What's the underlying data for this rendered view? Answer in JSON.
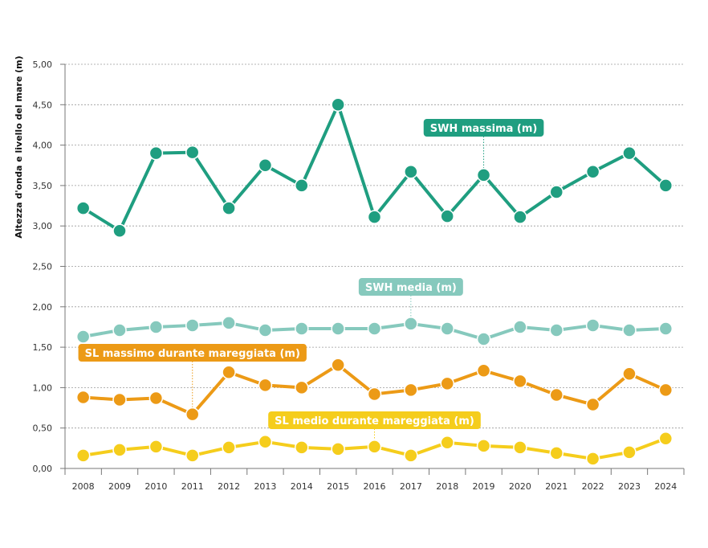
{
  "chart_data": {
    "type": "line",
    "ylabel": "Altezza d'onda e livello del mare (m)",
    "xlabel": "",
    "x": [
      "2008",
      "2009",
      "2010",
      "2011",
      "2012",
      "2013",
      "2014",
      "2015",
      "2016",
      "2017",
      "2018",
      "2019",
      "2020",
      "2021",
      "2022",
      "2023",
      "2024"
    ],
    "ylim": [
      0,
      5
    ],
    "yticks": [
      "0,00",
      "0,50",
      "1,00",
      "1,50",
      "2,00",
      "2,50",
      "3,00",
      "3,50",
      "4,00",
      "4,50",
      "5,00"
    ],
    "grid": "horizontal dashed",
    "series": [
      {
        "name": "SWH massima (m)",
        "color": "#1f9e80",
        "values": [
          3.22,
          2.94,
          3.9,
          3.91,
          3.22,
          3.75,
          3.5,
          4.5,
          3.11,
          3.67,
          3.12,
          3.63,
          3.11,
          3.42,
          3.67,
          3.9,
          3.5
        ]
      },
      {
        "name": "SWH media (m)",
        "color": "#86c9bd",
        "values": [
          1.63,
          1.71,
          1.75,
          1.77,
          1.8,
          1.71,
          1.73,
          1.73,
          1.73,
          1.79,
          1.73,
          1.6,
          1.75,
          1.71,
          1.77,
          1.71,
          1.73
        ]
      },
      {
        "name": "SL massimo durante mareggiata (m)",
        "color": "#ec9a16",
        "values": [
          0.88,
          0.85,
          0.87,
          0.67,
          1.19,
          1.03,
          1.0,
          1.28,
          0.92,
          0.97,
          1.05,
          1.21,
          1.08,
          0.91,
          0.79,
          1.17,
          0.97
        ]
      },
      {
        "name": "SL medio durante mareggiata (m)",
        "color": "#f5cd1c",
        "values": [
          0.16,
          0.23,
          0.27,
          0.16,
          0.26,
          0.33,
          0.26,
          0.24,
          0.27,
          0.16,
          0.32,
          0.28,
          0.26,
          0.19,
          0.12,
          0.2,
          0.37
        ]
      }
    ]
  }
}
